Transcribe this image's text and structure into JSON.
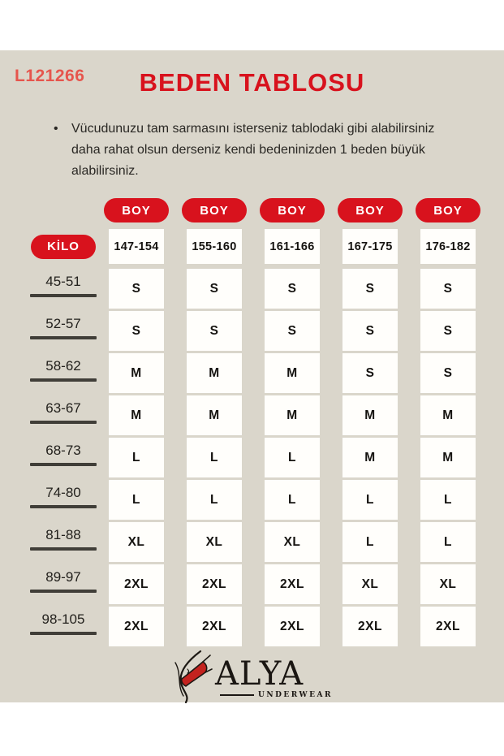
{
  "page": {
    "product_code": "L121266",
    "title": "BEDEN TABLOSU",
    "note_bullet": "•",
    "note": "Vücudunuzu tam sarmasını isterseniz tablodaki gibi alabilirsiniz daha rahat olsun derseniz kendi bedeninizden 1 beden büyük alabilirsiniz."
  },
  "table": {
    "col_header_label": "BOY",
    "row_header_label": "KİLO",
    "height_ranges": [
      "147-154",
      "155-160",
      "161-166",
      "167-175",
      "176-182"
    ],
    "rows": [
      {
        "weight": "45-51",
        "sizes": [
          "S",
          "S",
          "S",
          "S",
          "S"
        ]
      },
      {
        "weight": "52-57",
        "sizes": [
          "S",
          "S",
          "S",
          "S",
          "S"
        ]
      },
      {
        "weight": "58-62",
        "sizes": [
          "M",
          "M",
          "M",
          "S",
          "S"
        ]
      },
      {
        "weight": "63-67",
        "sizes": [
          "M",
          "M",
          "M",
          "M",
          "M"
        ]
      },
      {
        "weight": "68-73",
        "sizes": [
          "L",
          "L",
          "L",
          "M",
          "M"
        ]
      },
      {
        "weight": "74-80",
        "sizes": [
          "L",
          "L",
          "L",
          "L",
          "L"
        ]
      },
      {
        "weight": "81-88",
        "sizes": [
          "XL",
          "XL",
          "XL",
          "L",
          "L"
        ]
      },
      {
        "weight": "89-97",
        "sizes": [
          "2XL",
          "2XL",
          "2XL",
          "XL",
          "XL"
        ]
      },
      {
        "weight": "98-105",
        "sizes": [
          "2XL",
          "2XL",
          "2XL",
          "2XL",
          "2XL"
        ]
      }
    ]
  },
  "logo": {
    "brand": "ALYA",
    "tagline": "UNDERWEAR"
  },
  "colors": {
    "accent_red": "#d8121d",
    "code_red": "#e6554d",
    "panel_bg": "#dad6cb",
    "bar_dark": "#403e38",
    "cell_bg": "#fffefb",
    "text_dark": "#23211d"
  },
  "chart_data": {
    "type": "table",
    "title": "BEDEN TABLOSU",
    "column_header_label": "BOY",
    "row_header_label": "KİLO",
    "columns": [
      "KİLO",
      "147-154",
      "155-160",
      "161-166",
      "167-175",
      "176-182"
    ],
    "rows": [
      [
        "45-51",
        "S",
        "S",
        "S",
        "S",
        "S"
      ],
      [
        "52-57",
        "S",
        "S",
        "S",
        "S",
        "S"
      ],
      [
        "58-62",
        "M",
        "M",
        "M",
        "S",
        "S"
      ],
      [
        "63-67",
        "M",
        "M",
        "M",
        "M",
        "M"
      ],
      [
        "68-73",
        "L",
        "L",
        "L",
        "M",
        "M"
      ],
      [
        "74-80",
        "L",
        "L",
        "L",
        "L",
        "L"
      ],
      [
        "81-88",
        "XL",
        "XL",
        "XL",
        "L",
        "L"
      ],
      [
        "89-97",
        "2XL",
        "2XL",
        "2XL",
        "XL",
        "XL"
      ],
      [
        "98-105",
        "2XL",
        "2XL",
        "2XL",
        "2XL",
        "2XL"
      ]
    ]
  }
}
